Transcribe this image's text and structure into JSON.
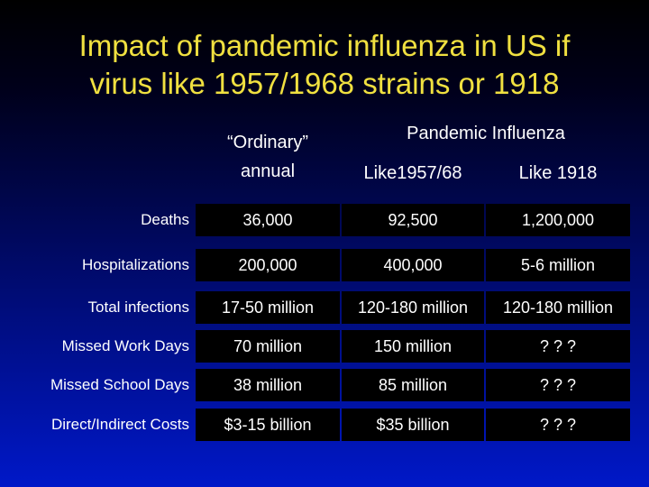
{
  "title_line1": "Impact of pandemic influenza in US if",
  "title_line2": "virus like 1957/1968 strains or 1918",
  "headers": {
    "ordinary_line1": "“Ordinary”",
    "ordinary_line2": "annual",
    "pandemic": "Pandemic Influenza",
    "like1957": "Like1957/68",
    "like1918": "Like 1918"
  },
  "rows": [
    {
      "label": "Deaths",
      "ordinary": "36,000",
      "like1957": "92,500",
      "like1918": "1,200,000"
    },
    {
      "label": "Hospitalizations",
      "ordinary": "200,000",
      "like1957": "400,000",
      "like1918": "5-6 million"
    },
    {
      "label": "Total infections",
      "ordinary": "17-50 million",
      "like1957": "120-180 million",
      "like1918": "120-180 million"
    },
    {
      "label": "Missed Work Days",
      "ordinary": "70 million",
      "like1957": "150 million",
      "like1918": "? ? ?"
    },
    {
      "label": "Missed School Days",
      "ordinary": "38 million",
      "like1957": "85 million",
      "like1918": "? ? ?"
    },
    {
      "label": "Direct/Indirect Costs",
      "ordinary": "$3-15 billion",
      "like1957": "$35 billion",
      "like1918": "? ? ?"
    }
  ],
  "colors": {
    "title": "#f0e040",
    "text": "#ffffff",
    "cell_bg": "#000000"
  }
}
